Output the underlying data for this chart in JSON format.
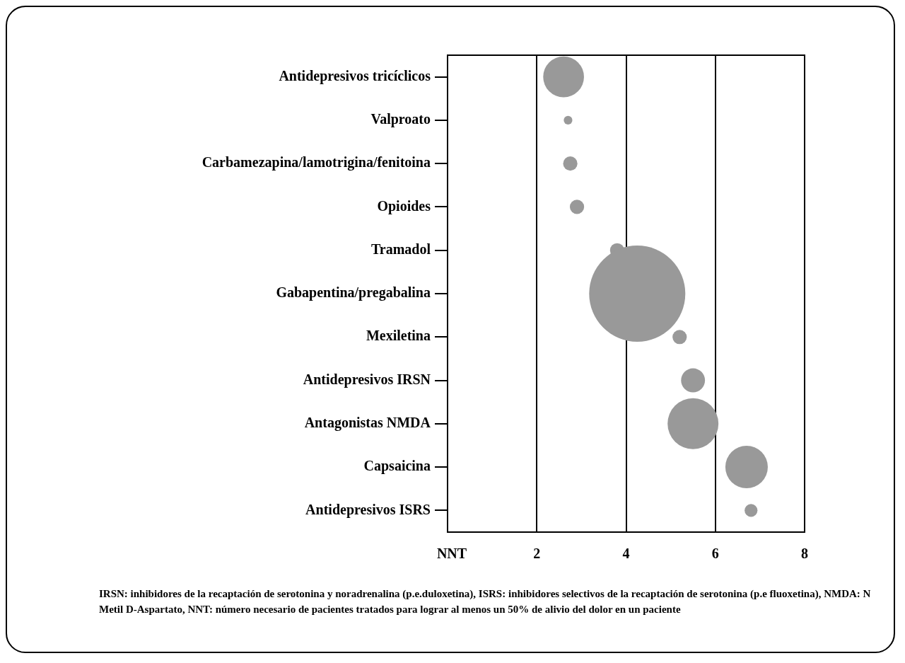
{
  "chart_data": {
    "type": "bubble",
    "categories": [
      "Antidepresivos tricíclicos",
      "Valproato",
      "Carbamezapina/lamotrigina/fenitoina",
      "Opioides",
      "Tramadol",
      "Gabapentina/pregabalina",
      "Mexiletina",
      "Antidepresivos IRSN",
      "Antagonistas NMDA",
      "Capsaicina",
      "Antidepresivos ISRS"
    ],
    "values": [
      2.6,
      2.7,
      2.75,
      2.9,
      3.8,
      4.25,
      5.2,
      5.5,
      5.5,
      6.7,
      6.8
    ],
    "sizes": [
      0.18,
      0.008,
      0.022,
      0.022,
      0.022,
      1,
      0.022,
      0.062,
      0.28,
      0.195,
      0.018
    ],
    "color": "#999999",
    "orientation": "horizontal",
    "xlabel": "NNT",
    "xlim": [
      0,
      8
    ],
    "xticks": [
      2,
      4,
      6,
      8
    ],
    "grid": "x",
    "legend": false,
    "annotations": [
      "IRSN: inhibidores de la recaptación de serotonina y noradrenalina (p.e.duloxetina), ISRS: inhibidores selectivos de la recaptación de serotonina (p.e fluoxetina), NMDA: N Metil D-Aspartato, NNT: número necesario de pacientes tratados para lograr al menos un 50% de alivio del dolor en un paciente"
    ]
  }
}
